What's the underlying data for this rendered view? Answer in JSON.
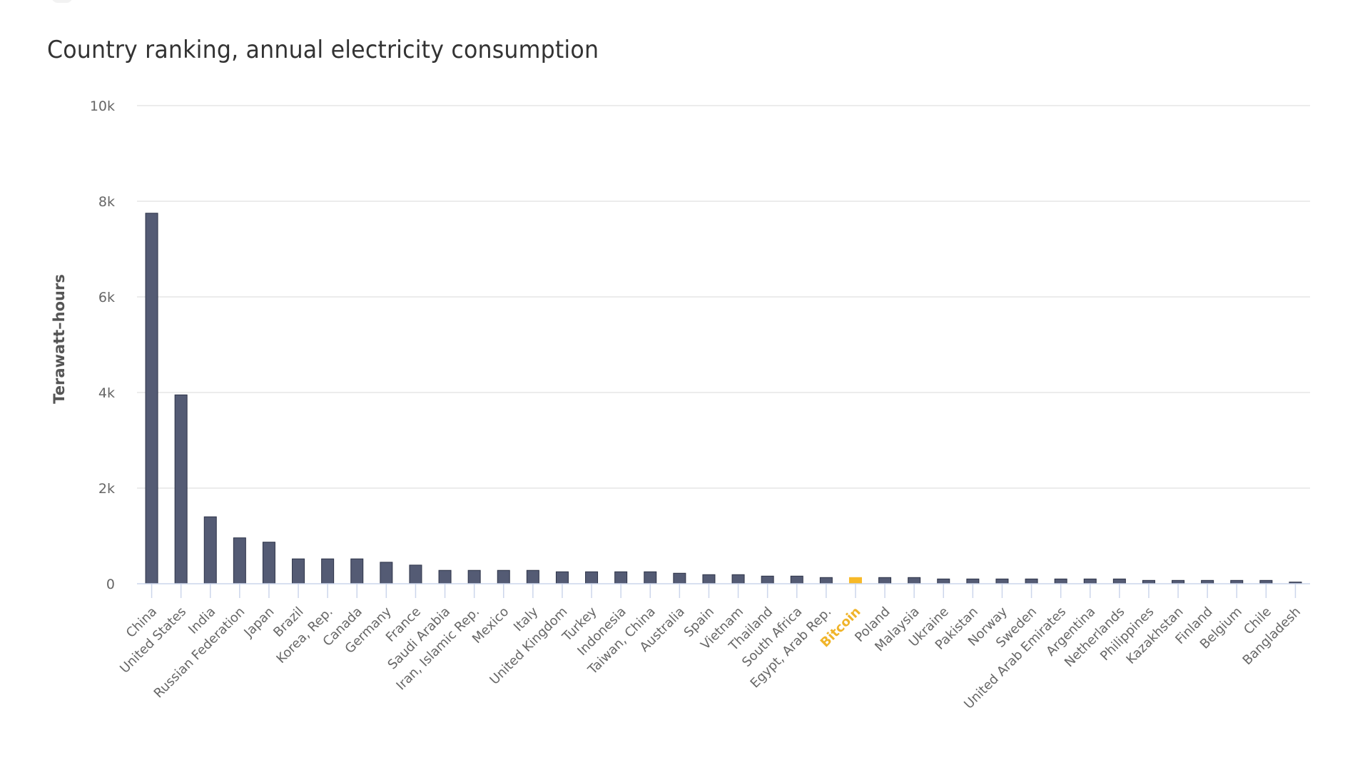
{
  "chart_data": {
    "type": "bar",
    "title": "Country ranking, annual electricity consumption",
    "xlabel": "",
    "ylabel": "Terawatt–hours",
    "ylim": [
      0,
      10000
    ],
    "yticks": [
      0,
      2000,
      4000,
      6000,
      8000,
      10000
    ],
    "ytick_labels": [
      "0",
      "2k",
      "4k",
      "6k",
      "8k",
      "10k"
    ],
    "grid": true,
    "legend": "none",
    "colors": {
      "bar": "#545b74",
      "bar_border": "#2d3348",
      "highlight": "#f7b928",
      "highlight_label": "#f0b429"
    },
    "highlight_category": "Bitcoin",
    "categories": [
      "China",
      "United States",
      "India",
      "Russian Federation",
      "Japan",
      "Brazil",
      "Korea, Rep.",
      "Canada",
      "Germany",
      "France",
      "Saudi Arabia",
      "Iran, Islamic Rep.",
      "Mexico",
      "Italy",
      "United Kingdom",
      "Turkey",
      "Indonesia",
      "Taiwan, China",
      "Australia",
      "Spain",
      "Vietnam",
      "Thailand",
      "South Africa",
      "Egypt, Arab Rep.",
      "Bitcoin",
      "Poland",
      "Malaysia",
      "Ukraine",
      "Pakistan",
      "Norway",
      "Sweden",
      "United Arab Emirates",
      "Argentina",
      "Netherlands",
      "Philippines",
      "Kazakhstan",
      "Finland",
      "Belgium",
      "Chile",
      "Bangladesh"
    ],
    "values": [
      7750,
      3950,
      1400,
      960,
      870,
      520,
      520,
      520,
      450,
      390,
      280,
      280,
      280,
      280,
      250,
      250,
      250,
      250,
      220,
      190,
      190,
      160,
      160,
      130,
      130,
      130,
      130,
      100,
      100,
      100,
      100,
      100,
      100,
      100,
      70,
      70,
      70,
      70,
      70,
      35
    ]
  }
}
